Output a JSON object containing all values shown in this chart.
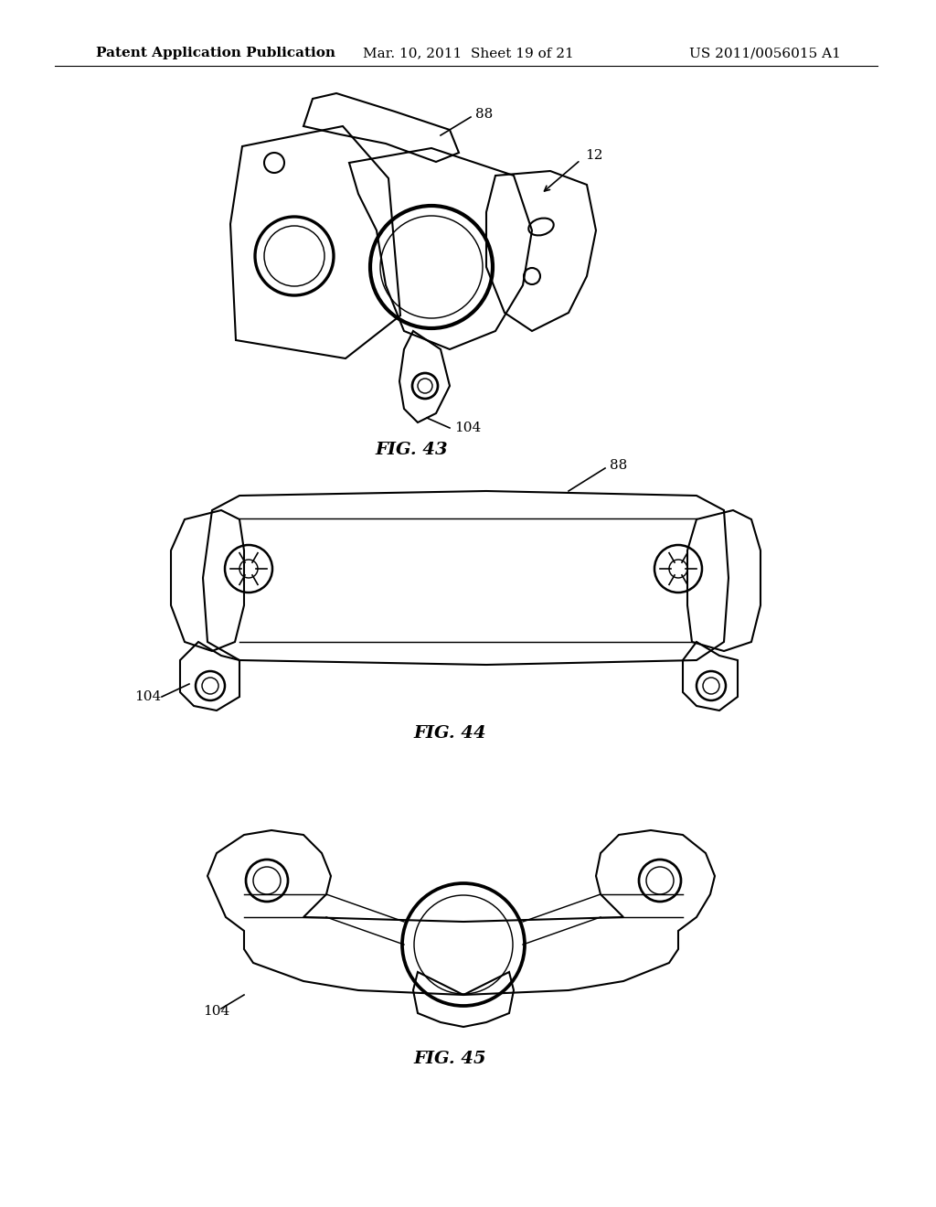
{
  "background_color": "#ffffff",
  "header_left": "Patent Application Publication",
  "header_center": "Mar. 10, 2011  Sheet 19 of 21",
  "header_right": "US 2011/0056015 A1",
  "header_fontsize": 11,
  "fig43_label": "FIG. 43",
  "fig44_label": "FIG. 44",
  "fig45_label": "FIG. 45",
  "fig_label_fontsize": 14,
  "ref_88_fig43": "88",
  "ref_12_fig43": "12",
  "ref_104_fig43": "104",
  "ref_88_fig44": "88",
  "ref_104_fig44": "104",
  "ref_104_fig45": "104",
  "ref_fontsize": 11,
  "line_color": "#000000",
  "line_width": 1.5
}
